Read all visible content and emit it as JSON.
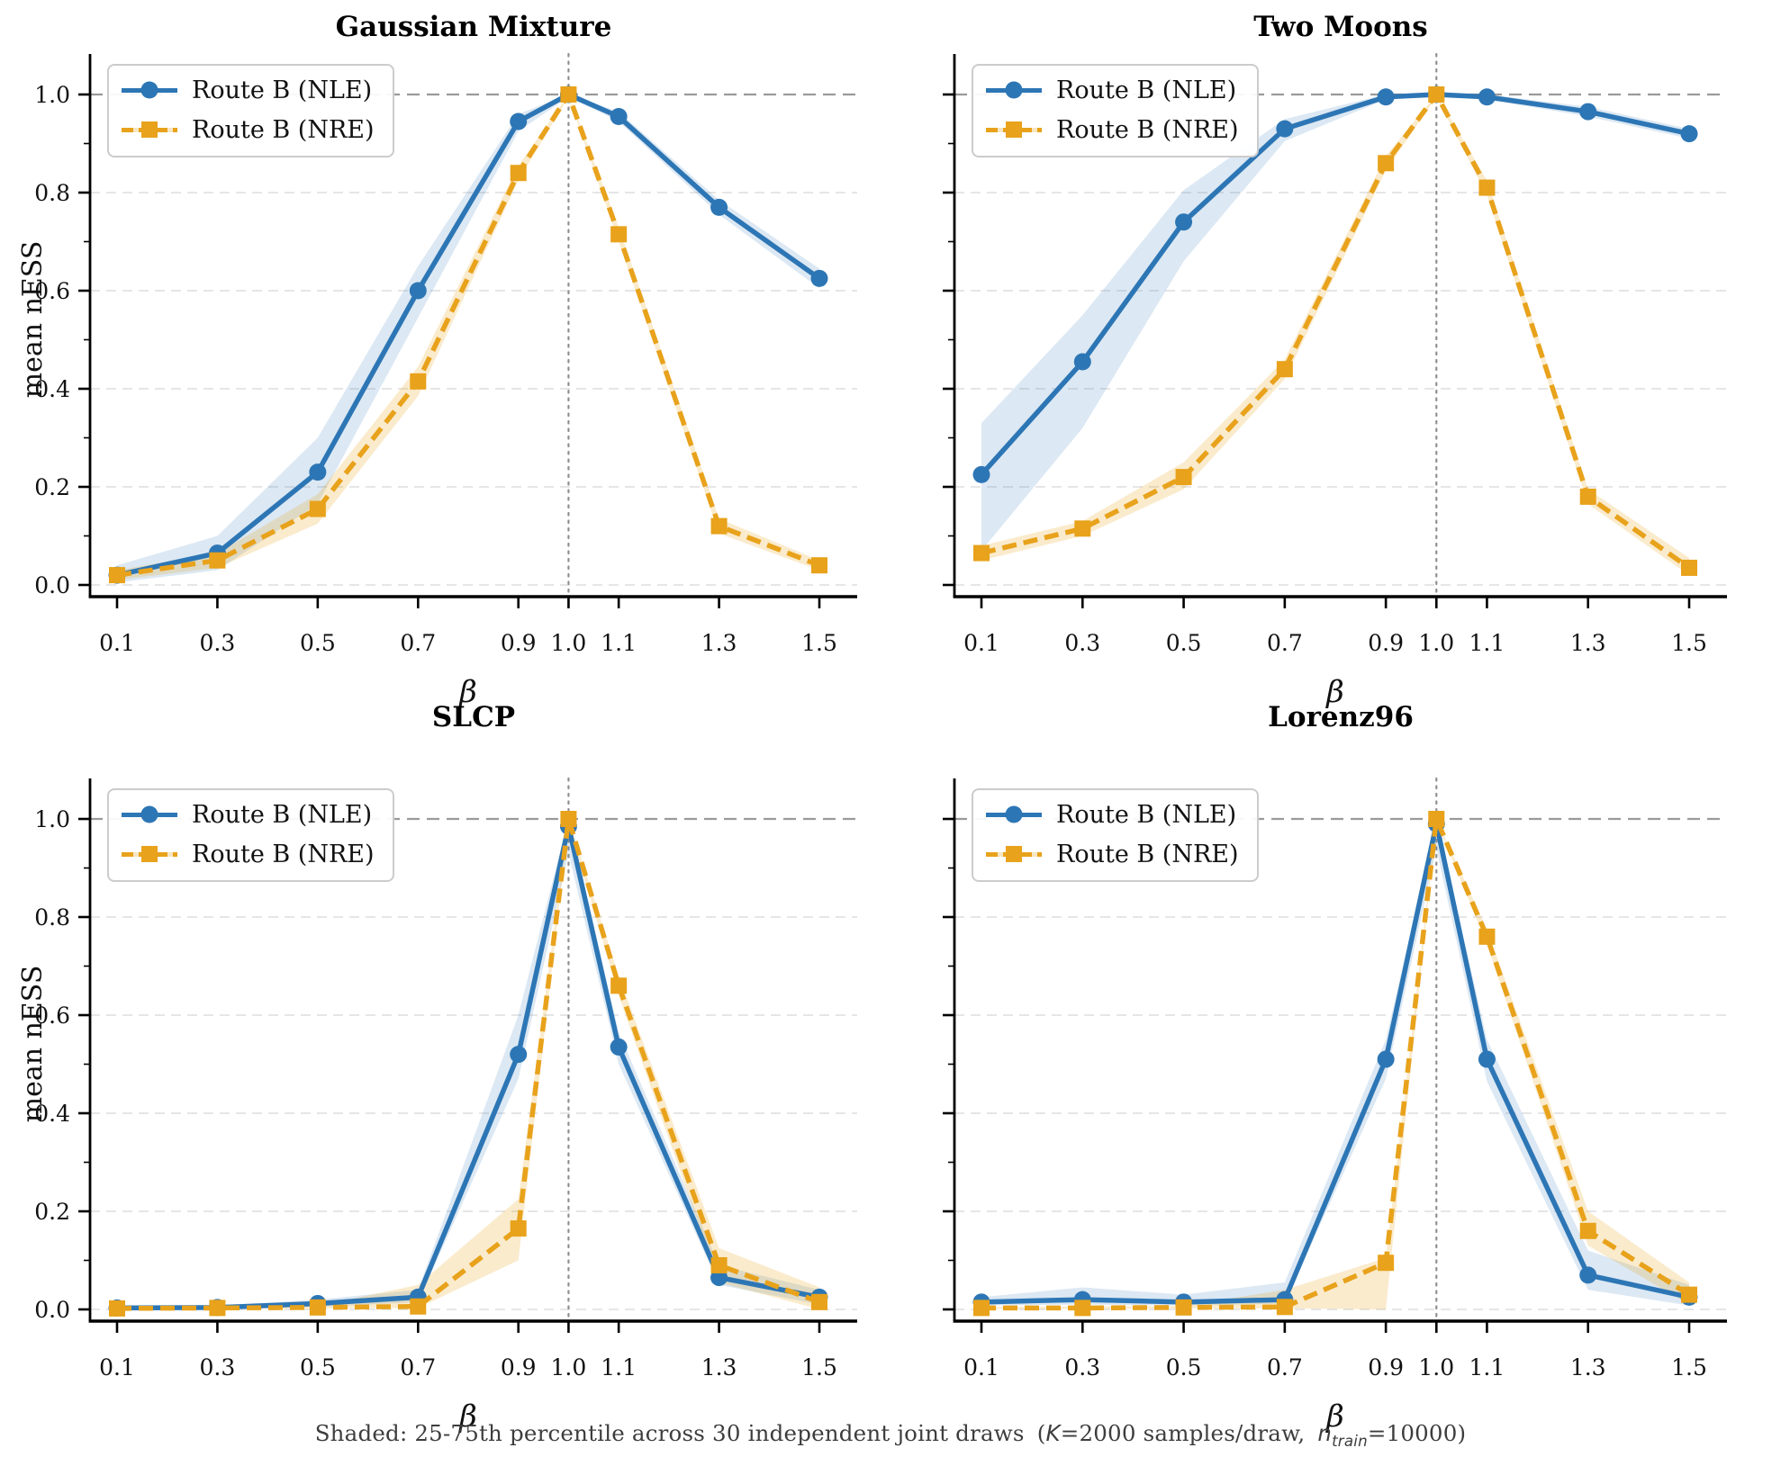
{
  "figure": {
    "caption": {
      "text1": "Shaded: 25-75th percentile across 30 independent joint draws",
      "open": "(",
      "k_var": "K",
      "text2": "=2000 samples/draw,",
      "n_var": "n",
      "n_sub": "train",
      "text3": "=10000)"
    },
    "colors": {
      "nle": "#2d76b5",
      "nre": "#e8a21b",
      "nle_band": "rgba(45,118,181,0.17)",
      "nre_band": "rgba(232,162,27,0.22)",
      "grid_light": "#dedede",
      "grid_major": "#9a9a9a",
      "vline": "#8f8f8f",
      "spine": "#000000",
      "tick_label": "#111111"
    }
  },
  "chart_data": [
    {
      "type": "line",
      "title": "Gaussian Mixture",
      "xlabel": "β",
      "ylabel": "mean nESS",
      "show_ytick_labels": true,
      "x": [
        0.1,
        0.3,
        0.5,
        0.7,
        0.9,
        1.0,
        1.1,
        1.3,
        1.5
      ],
      "xtick_labels": [
        "0.1",
        "0.3",
        "0.5",
        "0.7",
        "0.9",
        "1.0",
        "1.1",
        "1.3",
        "1.5"
      ],
      "yticks": [
        0.0,
        0.2,
        0.4,
        0.6,
        0.8,
        1.0
      ],
      "ytick_labels": [
        "0.0",
        "0.2",
        "0.4",
        "0.6",
        "0.8",
        "1.0"
      ],
      "ylim": [
        -0.024,
        1.083
      ],
      "vline_x": 1.0,
      "ref_hline_y": 1.0,
      "legend_position": "upper left",
      "series": [
        {
          "name": "Route B (NLE)",
          "marker": "circle",
          "line": "solid",
          "values": [
            0.02,
            0.065,
            0.23,
            0.6,
            0.945,
            1.0,
            0.955,
            0.77,
            0.625
          ],
          "band_low": [
            0.005,
            0.03,
            0.165,
            0.545,
            0.925,
            0.995,
            0.945,
            0.755,
            0.605
          ],
          "band_high": [
            0.04,
            0.1,
            0.3,
            0.65,
            0.96,
            1.0,
            0.965,
            0.785,
            0.645
          ]
        },
        {
          "name": "Route B (NRE)",
          "marker": "square",
          "line": "dashed",
          "values": [
            0.02,
            0.05,
            0.155,
            0.415,
            0.84,
            1.0,
            0.715,
            0.12,
            0.04
          ],
          "band_low": [
            0.01,
            0.035,
            0.125,
            0.385,
            0.825,
            0.995,
            0.7,
            0.105,
            0.03
          ],
          "band_high": [
            0.03,
            0.065,
            0.185,
            0.445,
            0.855,
            1.0,
            0.73,
            0.135,
            0.05
          ]
        }
      ]
    },
    {
      "type": "line",
      "title": "Two Moons",
      "xlabel": "β",
      "ylabel": "",
      "show_ytick_labels": false,
      "x": [
        0.1,
        0.3,
        0.5,
        0.7,
        0.9,
        1.0,
        1.1,
        1.3,
        1.5
      ],
      "xtick_labels": [
        "0.1",
        "0.3",
        "0.5",
        "0.7",
        "0.9",
        "1.0",
        "1.1",
        "1.3",
        "1.5"
      ],
      "yticks": [
        0.0,
        0.2,
        0.4,
        0.6,
        0.8,
        1.0
      ],
      "ytick_labels": [
        "0.0",
        "0.2",
        "0.4",
        "0.6",
        "0.8",
        "1.0"
      ],
      "ylim": [
        -0.024,
        1.083
      ],
      "vline_x": 1.0,
      "ref_hline_y": 1.0,
      "legend_position": "upper left",
      "series": [
        {
          "name": "Route B (NLE)",
          "marker": "circle",
          "line": "solid",
          "values": [
            0.225,
            0.455,
            0.74,
            0.93,
            0.995,
            1.0,
            0.995,
            0.965,
            0.92
          ],
          "band_low": [
            0.07,
            0.32,
            0.66,
            0.905,
            0.99,
            1.0,
            0.99,
            0.955,
            0.91
          ],
          "band_high": [
            0.33,
            0.55,
            0.805,
            0.95,
            1.0,
            1.0,
            1.0,
            0.975,
            0.93
          ]
        },
        {
          "name": "Route B (NRE)",
          "marker": "square",
          "line": "dashed",
          "values": [
            0.065,
            0.115,
            0.22,
            0.44,
            0.86,
            1.0,
            0.81,
            0.18,
            0.035
          ],
          "band_low": [
            0.05,
            0.1,
            0.195,
            0.42,
            0.845,
            0.995,
            0.795,
            0.165,
            0.02
          ],
          "band_high": [
            0.08,
            0.13,
            0.25,
            0.46,
            0.875,
            1.0,
            0.825,
            0.195,
            0.055
          ]
        }
      ]
    },
    {
      "type": "line",
      "title": "SLCP",
      "xlabel": "β",
      "ylabel": "mean nESS",
      "show_ytick_labels": true,
      "x": [
        0.1,
        0.3,
        0.5,
        0.7,
        0.9,
        1.0,
        1.1,
        1.3,
        1.5
      ],
      "xtick_labels": [
        "0.1",
        "0.3",
        "0.5",
        "0.7",
        "0.9",
        "1.0",
        "1.1",
        "1.3",
        "1.5"
      ],
      "yticks": [
        0.0,
        0.2,
        0.4,
        0.6,
        0.8,
        1.0
      ],
      "ytick_labels": [
        "0.0",
        "0.2",
        "0.4",
        "0.6",
        "0.8",
        "1.0"
      ],
      "ylim": [
        -0.024,
        1.083
      ],
      "vline_x": 1.0,
      "ref_hline_y": 1.0,
      "legend_position": "upper left",
      "series": [
        {
          "name": "Route B (NLE)",
          "marker": "circle",
          "line": "solid",
          "values": [
            0.003,
            0.004,
            0.012,
            0.025,
            0.52,
            0.985,
            0.535,
            0.065,
            0.025
          ],
          "band_low": [
            0.001,
            0.002,
            0.005,
            0.015,
            0.47,
            0.93,
            0.5,
            0.05,
            0.01
          ],
          "band_high": [
            0.006,
            0.008,
            0.02,
            0.04,
            0.6,
            1.0,
            0.565,
            0.09,
            0.04
          ]
        },
        {
          "name": "Route B (NRE)",
          "marker": "square",
          "line": "dashed",
          "values": [
            0.002,
            0.003,
            0.004,
            0.006,
            0.165,
            1.0,
            0.66,
            0.09,
            0.015
          ],
          "band_low": [
            0.001,
            0.001,
            0.002,
            0.003,
            0.1,
            0.99,
            0.64,
            0.055,
            0.0
          ],
          "band_high": [
            0.004,
            0.005,
            0.007,
            0.05,
            0.225,
            1.0,
            0.68,
            0.125,
            0.045
          ]
        }
      ]
    },
    {
      "type": "line",
      "title": "Lorenz96",
      "xlabel": "β",
      "ylabel": "",
      "show_ytick_labels": false,
      "x": [
        0.1,
        0.3,
        0.5,
        0.7,
        0.9,
        1.0,
        1.1,
        1.3,
        1.5
      ],
      "xtick_labels": [
        "0.1",
        "0.3",
        "0.5",
        "0.7",
        "0.9",
        "1.0",
        "1.1",
        "1.3",
        "1.5"
      ],
      "yticks": [
        0.0,
        0.2,
        0.4,
        0.6,
        0.8,
        1.0
      ],
      "ytick_labels": [
        "0.0",
        "0.2",
        "0.4",
        "0.6",
        "0.8",
        "1.0"
      ],
      "ylim": [
        -0.024,
        1.083
      ],
      "vline_x": 1.0,
      "ref_hline_y": 1.0,
      "legend_position": "upper left",
      "series": [
        {
          "name": "Route B (NLE)",
          "marker": "circle",
          "line": "solid",
          "values": [
            0.015,
            0.02,
            0.015,
            0.02,
            0.51,
            0.99,
            0.51,
            0.07,
            0.025
          ],
          "band_low": [
            0.008,
            0.01,
            0.008,
            0.012,
            0.47,
            0.94,
            0.465,
            0.04,
            0.008
          ],
          "band_high": [
            0.025,
            0.045,
            0.03,
            0.055,
            0.55,
            1.0,
            0.55,
            0.12,
            0.05
          ]
        },
        {
          "name": "Route B (NRE)",
          "marker": "square",
          "line": "dashed",
          "values": [
            0.003,
            0.003,
            0.004,
            0.005,
            0.095,
            1.0,
            0.76,
            0.16,
            0.03
          ],
          "band_low": [
            0.001,
            0.001,
            0.002,
            0.002,
            0.0,
            0.995,
            0.745,
            0.13,
            0.01
          ],
          "band_high": [
            0.005,
            0.006,
            0.007,
            0.04,
            0.105,
            1.0,
            0.775,
            0.2,
            0.055
          ]
        }
      ]
    }
  ]
}
